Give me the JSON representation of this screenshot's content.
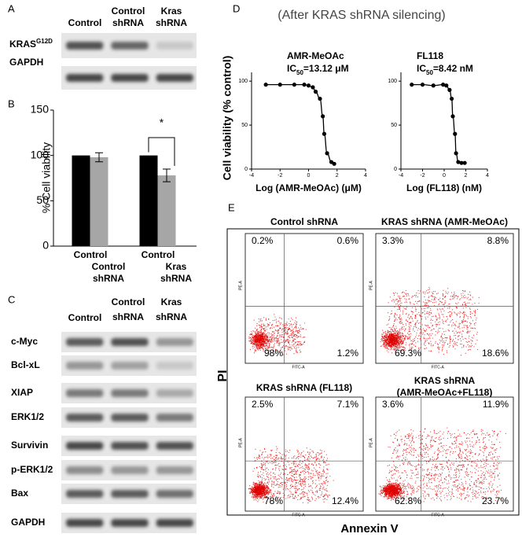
{
  "panel_a": {
    "label": "A",
    "lanes": [
      [
        "Control"
      ],
      [
        "Control",
        "shRNA"
      ],
      [
        "Kras",
        "shRNA"
      ]
    ],
    "rows": [
      {
        "text": "KRAS",
        "sup": "G12D"
      },
      {
        "text": "GAPDH"
      }
    ]
  },
  "panel_b": {
    "label": "B"
  },
  "panel_c": {
    "label": "C",
    "lanes": [
      [
        "Control"
      ],
      [
        "Control",
        "shRNA"
      ],
      [
        "Kras",
        "shRNA"
      ]
    ],
    "rows": [
      "c-Myc",
      "Bcl-xL",
      "XIAP",
      "ERK1/2",
      "Survivin",
      "p-ERK1/2",
      "Bax",
      "GAPDH"
    ]
  },
  "panel_d": {
    "label": "D",
    "title": "(After KRAS shRNA silencing)",
    "ylabel": "Cell viability (% control)"
  },
  "chart_data": [
    {
      "type": "bar",
      "ylabel": "% Cell viability",
      "categories": [
        [
          "Control"
        ],
        [
          "Control",
          "shRNA"
        ],
        [
          "Control"
        ],
        [
          "Kras",
          "shRNA"
        ]
      ],
      "values": [
        100,
        98,
        100,
        78
      ],
      "errors": [
        null,
        5,
        null,
        7
      ],
      "colors": [
        "#000000",
        "#a6a6a6",
        "#000000",
        "#a6a6a6"
      ],
      "ylim": [
        0,
        150
      ],
      "yticks": [
        0,
        50,
        100,
        150
      ],
      "significance": "*"
    },
    {
      "type": "scatter",
      "name": "AMR-MeOAc",
      "ic50": {
        "prefix": "IC",
        "sub": "50",
        "value": "=13.12 μM"
      },
      "xlabel": "Log (AMR-MeOAc) (μM)",
      "x": [
        -3,
        -2,
        -1,
        -0.3,
        0,
        0.3,
        0.5,
        0.8,
        1,
        1.1,
        1.3,
        1.6,
        1.8
      ],
      "values": [
        96,
        96,
        96,
        96,
        95,
        93,
        88,
        80,
        60,
        40,
        18,
        8,
        6
      ],
      "xlim": [
        -4,
        4
      ],
      "xticks": [
        -4,
        -2,
        0,
        2,
        4
      ],
      "ylim": [
        0,
        110
      ],
      "yticks": [
        0,
        50,
        100
      ],
      "color": "#000000"
    },
    {
      "type": "scatter",
      "name": "FL118",
      "ic50": {
        "prefix": "IC",
        "sub": "50",
        "value": "=8.42 nM"
      },
      "xlabel": "Log (FL118) (nM)",
      "x": [
        -3,
        -2,
        -1,
        -0.1,
        0.2,
        0.5,
        0.7,
        0.8,
        1,
        1.1,
        1.3,
        1.6,
        1.9
      ],
      "values": [
        96,
        96,
        95,
        96,
        95,
        90,
        80,
        60,
        40,
        18,
        8,
        7,
        7
      ],
      "xlim": [
        -4,
        4
      ],
      "xticks": [
        -4,
        -2,
        0,
        2,
        4
      ],
      "ylim": [
        0,
        110
      ],
      "yticks": [
        0,
        50,
        100
      ],
      "color": "#000000"
    }
  ],
  "panel_e": {
    "label": "E",
    "ylabel": "PI",
    "xlabel": "Annexin V",
    "y_channel": "PE-A",
    "x_channel": "FITC-A",
    "plots": [
      {
        "title": [
          "Control shRNA"
        ],
        "ul": "0.2%",
        "ur": "0.6%",
        "ll": "98%",
        "lr": "1.2%"
      },
      {
        "title": [
          "KRAS shRNA (AMR-MeOAc)"
        ],
        "ul": "3.3%",
        "ur": "8.8%",
        "ll": "69.3%",
        "lr": "18.6%"
      },
      {
        "title": [
          "KRAS shRNA (FL118)"
        ],
        "ul": "2.5%",
        "ur": "7.1%",
        "ll": "78%",
        "lr": "12.4%"
      },
      {
        "title": [
          "KRAS shRNA",
          "(AMR-MeOAc+FL118)"
        ],
        "ul": "3.6%",
        "ur": "11.9%",
        "ll": "62.8%",
        "lr": "23.7%"
      }
    ]
  }
}
